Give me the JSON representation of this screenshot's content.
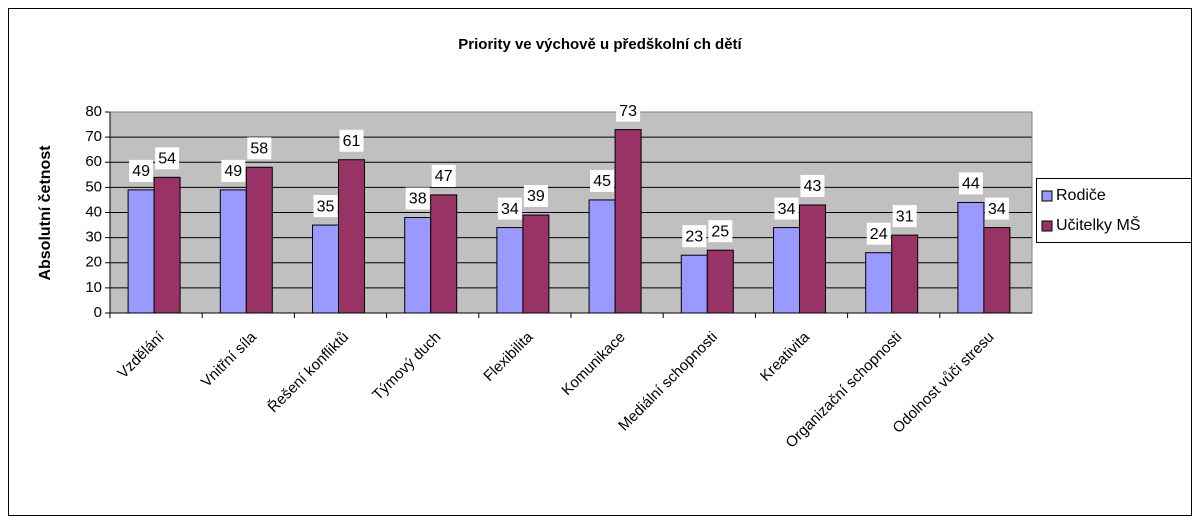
{
  "chart_data": {
    "type": "bar",
    "title": "Priority ve výchově u předškolní ch dětí",
    "y_label": "Absolutní četnost",
    "categories": [
      "Vzdělání",
      "Vnitřní síla",
      "Řešení konfliktů",
      "Týmový duch",
      "Flexibilita",
      "Komunikace",
      "Mediální schopnosti",
      "Kreativita",
      "Organizační schopnosti",
      "Odolnost vůči stresu"
    ],
    "series": [
      {
        "name": "Rodiče",
        "color": "#9999ff",
        "values": [
          49,
          49,
          35,
          38,
          34,
          45,
          23,
          34,
          24,
          44
        ]
      },
      {
        "name": "Učitelky MŠ",
        "color": "#993366",
        "values": [
          54,
          58,
          61,
          47,
          39,
          73,
          25,
          43,
          31,
          34
        ]
      }
    ],
    "ylim": [
      0,
      80
    ],
    "yticks": [
      0,
      10,
      20,
      30,
      40,
      50,
      60,
      70,
      80
    ],
    "grid": true,
    "legend": "right"
  }
}
